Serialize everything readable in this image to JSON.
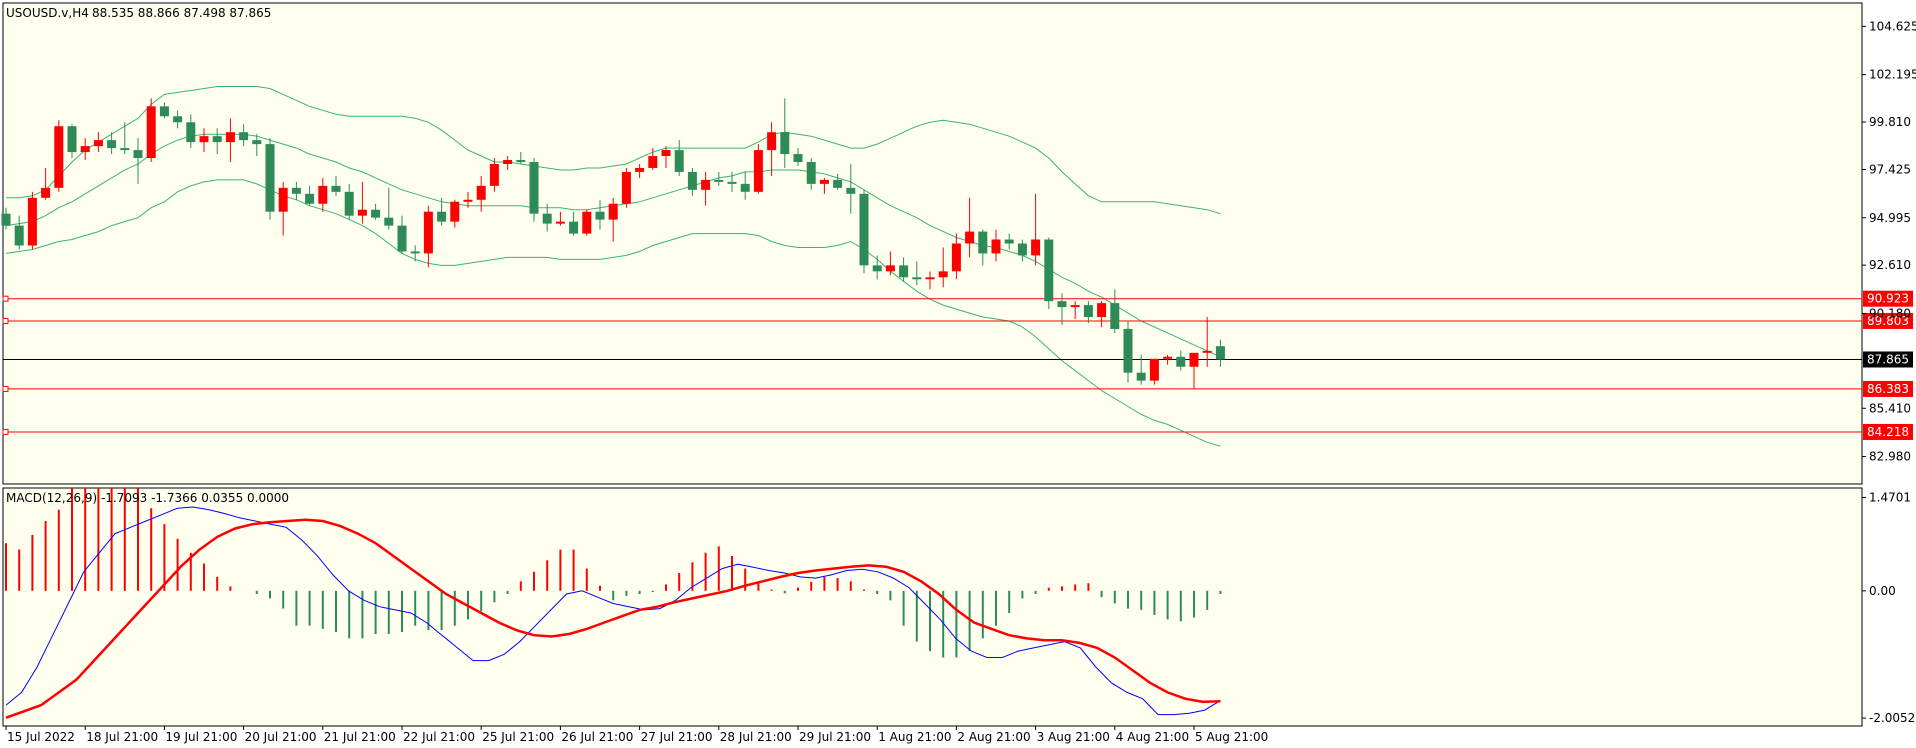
{
  "header": {
    "symbol": "USOUSD.v,H4",
    "ohlc": "88.535 88.866 87.498 87.865",
    "macd_label": "MACD(12,26,9) -1.7093 -1.7366 0.0355 0.0000"
  },
  "price_axis": {
    "labels": [
      "104.625",
      "102.195",
      "99.810",
      "97.425",
      "94.995",
      "92.610",
      "90.180",
      "85.410",
      "82.980"
    ],
    "min": 81.6,
    "max": 105.8
  },
  "macd_axis": {
    "labels": [
      "1.4701",
      "0.00",
      "-2.0052"
    ],
    "min": -2.13,
    "max": 1.62
  },
  "time_axis": {
    "labels": [
      "15 Jul 2022",
      "18 Jul 21:00",
      "19 Jul 21:00",
      "20 Jul 21:00",
      "21 Jul 21:00",
      "22 Jul 21:00",
      "25 Jul 21:00",
      "26 Jul 21:00",
      "27 Jul 21:00",
      "28 Jul 21:00",
      "29 Jul 21:00",
      "1 Aug 21:00",
      "2 Aug 21:00",
      "3 Aug 21:00",
      "4 Aug 21:00",
      "5 Aug 21:00"
    ]
  },
  "levels": [
    {
      "value": "90.923",
      "color": "#ff0000"
    },
    {
      "value": "89.803",
      "color": "#ff0000"
    },
    {
      "value": "86.383",
      "color": "#ff0000"
    },
    {
      "value": "84.218",
      "color": "#ff0000"
    }
  ],
  "current_price": {
    "value": "87.865",
    "color": "#000000"
  },
  "colors": {
    "background": "#fffff0",
    "bull": "#ff0000",
    "bear": "#2e8b57",
    "bands": "#3cb371",
    "macd_line": "#0000ff",
    "signal_line": "#ff0000"
  },
  "chart_data": {
    "type": "candlestick",
    "symbol": "USOUSD.v",
    "timeframe": "H4",
    "candles": [
      [
        95.2,
        95.5,
        94.4,
        94.6
      ],
      [
        94.6,
        95.1,
        93.4,
        93.6
      ],
      [
        93.6,
        96.3,
        93.4,
        96.0
      ],
      [
        96.0,
        97.5,
        95.9,
        96.5
      ],
      [
        96.5,
        99.9,
        96.3,
        99.6
      ],
      [
        99.6,
        99.7,
        98.0,
        98.3
      ],
      [
        98.3,
        99.0,
        97.9,
        98.6
      ],
      [
        98.6,
        99.3,
        98.3,
        98.9
      ],
      [
        98.9,
        99.3,
        98.2,
        98.5
      ],
      [
        98.5,
        99.8,
        98.2,
        98.4
      ],
      [
        98.4,
        99.0,
        96.7,
        98.0
      ],
      [
        98.0,
        101.0,
        97.8,
        100.6
      ],
      [
        100.6,
        100.8,
        100.0,
        100.1
      ],
      [
        100.1,
        100.4,
        99.5,
        99.8
      ],
      [
        99.8,
        100.2,
        98.5,
        98.8
      ],
      [
        98.8,
        99.5,
        98.3,
        99.1
      ],
      [
        99.1,
        99.5,
        98.2,
        98.8
      ],
      [
        98.8,
        100.0,
        97.8,
        99.3
      ],
      [
        99.3,
        99.7,
        98.6,
        98.9
      ],
      [
        98.9,
        99.2,
        98.1,
        98.7
      ],
      [
        98.7,
        99.0,
        94.9,
        95.3
      ],
      [
        95.3,
        96.8,
        94.1,
        96.5
      ],
      [
        96.5,
        96.8,
        95.9,
        96.2
      ],
      [
        96.2,
        96.6,
        95.6,
        95.7
      ],
      [
        95.7,
        97.0,
        95.3,
        96.6
      ],
      [
        96.6,
        97.1,
        96.1,
        96.3
      ],
      [
        96.3,
        96.7,
        94.9,
        95.1
      ],
      [
        95.1,
        96.8,
        94.7,
        95.4
      ],
      [
        95.4,
        95.7,
        94.9,
        95.0
      ],
      [
        95.0,
        96.5,
        94.4,
        94.6
      ],
      [
        94.6,
        95.1,
        93.2,
        93.3
      ],
      [
        93.3,
        93.6,
        92.8,
        93.2
      ],
      [
        93.2,
        95.6,
        92.5,
        95.3
      ],
      [
        95.3,
        96.0,
        94.6,
        94.8
      ],
      [
        94.8,
        95.9,
        94.5,
        95.8
      ],
      [
        95.8,
        96.3,
        95.5,
        95.9
      ],
      [
        95.9,
        97.1,
        95.3,
        96.6
      ],
      [
        96.6,
        98.0,
        96.3,
        97.7
      ],
      [
        97.7,
        98.1,
        97.4,
        97.9
      ],
      [
        97.9,
        98.3,
        97.7,
        97.8
      ],
      [
        97.8,
        98.0,
        94.8,
        95.2
      ],
      [
        95.2,
        95.7,
        94.3,
        94.7
      ],
      [
        94.7,
        95.3,
        94.6,
        94.8
      ],
      [
        94.8,
        95.3,
        94.1,
        94.2
      ],
      [
        94.2,
        95.4,
        94.1,
        95.3
      ],
      [
        95.3,
        95.9,
        94.4,
        94.9
      ],
      [
        94.9,
        96.0,
        93.8,
        95.7
      ],
      [
        95.7,
        97.5,
        95.5,
        97.3
      ],
      [
        97.3,
        97.7,
        97.0,
        97.5
      ],
      [
        97.5,
        98.5,
        97.4,
        98.1
      ],
      [
        98.1,
        98.6,
        97.5,
        98.4
      ],
      [
        98.4,
        98.9,
        97.1,
        97.3
      ],
      [
        97.3,
        97.5,
        96.1,
        96.4
      ],
      [
        96.4,
        97.3,
        95.6,
        96.9
      ],
      [
        96.9,
        97.3,
        96.6,
        96.8
      ],
      [
        96.8,
        97.3,
        96.3,
        96.7
      ],
      [
        96.7,
        97.3,
        95.9,
        96.3
      ],
      [
        96.3,
        98.7,
        96.2,
        98.4
      ],
      [
        98.4,
        99.8,
        97.1,
        99.3
      ],
      [
        99.3,
        101.0,
        97.5,
        98.2
      ],
      [
        98.2,
        98.5,
        97.6,
        97.8
      ],
      [
        97.8,
        98.0,
        96.4,
        96.7
      ],
      [
        96.7,
        97.0,
        96.2,
        96.9
      ],
      [
        96.9,
        97.2,
        96.4,
        96.5
      ],
      [
        96.5,
        97.7,
        95.2,
        96.2
      ],
      [
        96.2,
        96.4,
        92.2,
        92.6
      ],
      [
        92.6,
        93.1,
        91.9,
        92.3
      ],
      [
        92.3,
        93.3,
        92.1,
        92.6
      ],
      [
        92.6,
        93.0,
        91.8,
        92.0
      ],
      [
        92.0,
        92.8,
        91.6,
        91.9
      ],
      [
        91.9,
        92.3,
        91.4,
        92.0
      ],
      [
        92.0,
        93.5,
        91.5,
        92.3
      ],
      [
        92.3,
        94.2,
        91.9,
        93.7
      ],
      [
        93.7,
        96.0,
        93.0,
        94.3
      ],
      [
        94.3,
        94.4,
        92.6,
        93.2
      ],
      [
        93.2,
        94.4,
        92.8,
        93.9
      ],
      [
        93.9,
        94.2,
        93.4,
        93.7
      ],
      [
        93.7,
        93.9,
        92.8,
        93.1
      ],
      [
        93.1,
        96.2,
        92.6,
        93.9
      ],
      [
        93.9,
        94.0,
        90.4,
        90.8
      ],
      [
        90.8,
        91.2,
        89.6,
        90.5
      ],
      [
        90.5,
        90.8,
        89.9,
        90.6
      ],
      [
        90.6,
        90.8,
        89.7,
        90.0
      ],
      [
        90.0,
        90.8,
        89.5,
        90.7
      ],
      [
        90.7,
        91.4,
        89.2,
        89.4
      ],
      [
        89.4,
        89.8,
        86.7,
        87.2
      ],
      [
        87.2,
        88.1,
        86.6,
        86.8
      ],
      [
        86.8,
        87.8,
        86.6,
        87.9
      ],
      [
        87.9,
        88.1,
        87.6,
        88.0
      ],
      [
        88.0,
        88.3,
        87.3,
        87.5
      ],
      [
        87.5,
        88.1,
        86.4,
        88.2
      ],
      [
        88.2,
        90.0,
        87.5,
        88.3
      ],
      [
        88.535,
        88.866,
        87.498,
        87.865
      ]
    ],
    "levels": [
      90.923,
      89.803,
      86.383,
      84.218
    ],
    "current": 87.865,
    "price_range": [
      81.6,
      105.8
    ],
    "bollinger": {
      "upper": [
        96.0,
        96.0,
        96.1,
        96.4,
        97.1,
        97.8,
        98.4,
        98.8,
        99.2,
        99.6,
        100.0,
        100.7,
        101.2,
        101.3,
        101.4,
        101.5,
        101.6,
        101.6,
        101.6,
        101.6,
        101.5,
        101.2,
        100.9,
        100.6,
        100.4,
        100.2,
        100.1,
        100.1,
        100.1,
        100.1,
        100.1,
        100.0,
        99.8,
        99.4,
        98.9,
        98.4,
        98.1,
        97.8,
        97.8,
        97.7,
        97.6,
        97.5,
        97.4,
        97.4,
        97.5,
        97.5,
        97.6,
        97.7,
        98.0,
        98.3,
        98.5,
        98.5,
        98.5,
        98.5,
        98.5,
        98.5,
        98.5,
        98.8,
        99.2,
        99.3,
        99.2,
        99.1,
        98.9,
        98.7,
        98.5,
        98.5,
        98.7,
        99.0,
        99.3,
        99.6,
        99.8,
        99.9,
        99.8,
        99.7,
        99.5,
        99.3,
        99.1,
        98.8,
        98.5,
        98.0,
        97.3,
        96.7,
        96.1,
        95.8,
        95.8,
        95.8,
        95.8,
        95.8,
        95.7,
        95.6,
        95.5,
        95.4,
        95.2
      ],
      "middle": [
        94.6,
        94.7,
        94.8,
        95.1,
        95.5,
        95.8,
        96.2,
        96.6,
        97.0,
        97.4,
        97.7,
        98.2,
        98.6,
        98.9,
        99.1,
        99.2,
        99.2,
        99.2,
        99.2,
        99.1,
        98.9,
        98.7,
        98.5,
        98.2,
        98.0,
        97.8,
        97.5,
        97.3,
        97.0,
        96.7,
        96.4,
        96.2,
        96.0,
        95.8,
        95.7,
        95.6,
        95.6,
        95.6,
        95.6,
        95.6,
        95.5,
        95.5,
        95.5,
        95.4,
        95.4,
        95.5,
        95.6,
        95.7,
        95.8,
        96.0,
        96.2,
        96.4,
        96.6,
        96.8,
        97.0,
        97.1,
        97.3,
        97.3,
        97.4,
        97.4,
        97.4,
        97.3,
        97.2,
        97.0,
        96.8,
        96.4,
        96.0,
        95.6,
        95.3,
        95.0,
        94.6,
        94.3,
        94.0,
        93.8,
        93.6,
        93.5,
        93.3,
        93.1,
        92.8,
        92.4,
        92.0,
        91.7,
        91.3,
        91.0,
        90.6,
        90.2,
        89.8,
        89.5,
        89.2,
        88.9,
        88.6,
        88.3,
        88.0
      ],
      "lower": [
        93.2,
        93.3,
        93.4,
        93.6,
        93.8,
        93.9,
        94.1,
        94.3,
        94.6,
        94.8,
        95.0,
        95.5,
        95.8,
        96.3,
        96.6,
        96.8,
        96.9,
        96.9,
        96.9,
        96.7,
        96.4,
        96.1,
        95.9,
        95.6,
        95.4,
        95.2,
        94.9,
        94.6,
        94.2,
        93.7,
        93.2,
        92.9,
        92.7,
        92.6,
        92.6,
        92.7,
        92.8,
        92.9,
        93.0,
        93.0,
        93.0,
        93.0,
        92.9,
        92.9,
        92.9,
        92.9,
        93.0,
        93.1,
        93.3,
        93.6,
        93.8,
        94.0,
        94.2,
        94.2,
        94.2,
        94.2,
        94.2,
        94.1,
        93.8,
        93.6,
        93.5,
        93.5,
        93.5,
        93.6,
        93.8,
        93.4,
        92.9,
        92.3,
        91.8,
        91.3,
        90.9,
        90.6,
        90.4,
        90.2,
        90.0,
        89.9,
        89.8,
        89.5,
        89.0,
        88.4,
        87.8,
        87.3,
        86.8,
        86.3,
        85.9,
        85.5,
        85.1,
        84.8,
        84.6,
        84.3,
        84.0,
        83.7,
        83.5
      ]
    },
    "macd": {
      "params": "12,26,9",
      "histogram": [
        0.75,
        0.65,
        0.88,
        1.1,
        1.28,
        1.62,
        1.62,
        1.62,
        1.62,
        1.62,
        1.62,
        1.3,
        1.05,
        0.82,
        0.6,
        0.43,
        0.22,
        0.07,
        0.0,
        -0.05,
        -0.12,
        -0.28,
        -0.55,
        -0.55,
        -0.6,
        -0.65,
        -0.75,
        -0.75,
        -0.68,
        -0.68,
        -0.65,
        -0.55,
        -0.62,
        -0.62,
        -0.55,
        -0.45,
        -0.32,
        -0.18,
        -0.05,
        0.15,
        0.3,
        0.48,
        0.65,
        0.65,
        0.35,
        0.08,
        -0.15,
        -0.08,
        -0.05,
        -0.02,
        0.1,
        0.28,
        0.45,
        0.6,
        0.7,
        0.55,
        0.35,
        0.15,
        0.02,
        -0.04,
        0.05,
        0.14,
        0.22,
        0.2,
        0.15,
        0.02,
        -0.05,
        -0.15,
        -0.55,
        -0.8,
        -0.95,
        -1.05,
        -1.05,
        -0.95,
        -0.75,
        -0.55,
        -0.35,
        -0.12,
        -0.05,
        0.05,
        0.07,
        0.1,
        0.12,
        -0.1,
        -0.2,
        -0.28,
        -0.3,
        -0.38,
        -0.45,
        -0.48,
        -0.42,
        -0.3,
        -0.05
      ],
      "macd_line": [
        -1.8,
        -1.6,
        -1.2,
        -0.7,
        -0.2,
        0.3,
        0.6,
        0.9,
        1.0,
        1.1,
        1.2,
        1.3,
        1.32,
        1.28,
        1.22,
        1.15,
        1.1,
        1.05,
        1.0,
        0.8,
        0.55,
        0.25,
        0.0,
        -0.15,
        -0.25,
        -0.3,
        -0.35,
        -0.5,
        -0.7,
        -0.9,
        -1.1,
        -1.1,
        -1.0,
        -0.8,
        -0.55,
        -0.3,
        -0.05,
        0.0,
        -0.1,
        -0.2,
        -0.25,
        -0.3,
        -0.28,
        -0.15,
        0.05,
        0.2,
        0.35,
        0.42,
        0.37,
        0.32,
        0.28,
        0.22,
        0.2,
        0.25,
        0.32,
        0.34,
        0.3,
        0.2,
        0.05,
        -0.2,
        -0.45,
        -0.75,
        -0.95,
        -1.05,
        -1.05,
        -0.95,
        -0.9,
        -0.85,
        -0.8,
        -0.9,
        -1.2,
        -1.45,
        -1.6,
        -1.7,
        -1.95,
        -1.95,
        -1.93,
        -1.88,
        -1.73
      ],
      "signal_line": [
        -2.0,
        -1.9,
        -1.8,
        -1.6,
        -1.4,
        -1.1,
        -0.8,
        -0.5,
        -0.2,
        0.1,
        0.4,
        0.65,
        0.85,
        0.98,
        1.05,
        1.08,
        1.1,
        1.12,
        1.1,
        1.02,
        0.9,
        0.75,
        0.55,
        0.35,
        0.15,
        -0.05,
        -0.2,
        -0.35,
        -0.5,
        -0.62,
        -0.7,
        -0.72,
        -0.68,
        -0.6,
        -0.5,
        -0.4,
        -0.3,
        -0.25,
        -0.18,
        -0.12,
        -0.06,
        0.0,
        0.08,
        0.15,
        0.22,
        0.28,
        0.32,
        0.35,
        0.38,
        0.4,
        0.38,
        0.3,
        0.15,
        -0.05,
        -0.3,
        -0.5,
        -0.6,
        -0.7,
        -0.75,
        -0.78,
        -0.78,
        -0.82,
        -0.9,
        -1.05,
        -1.25,
        -1.45,
        -1.6,
        -1.7,
        -1.75,
        -1.74
      ]
    }
  }
}
